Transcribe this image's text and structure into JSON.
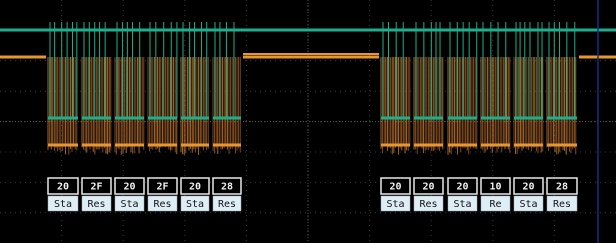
{
  "decode": {
    "groups": [
      {
        "bytes": [
          "20",
          "2F",
          "20",
          "2F",
          "20",
          "28"
        ],
        "labels": [
          "Sta",
          "Res",
          "Sta",
          "Res",
          "Sta",
          "Res"
        ]
      },
      {
        "bytes": [
          "20",
          "20",
          "20",
          "10",
          "20",
          "28"
        ],
        "labels": [
          "Sta",
          "Res",
          "Sta",
          "Re",
          "Sta",
          "Res"
        ]
      }
    ]
  }
}
